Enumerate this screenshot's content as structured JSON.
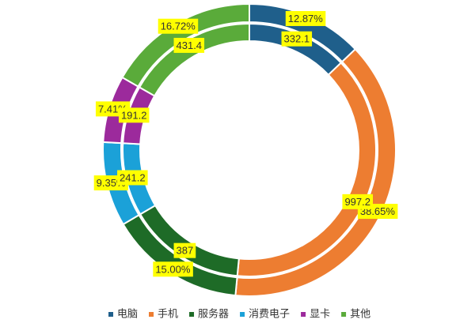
{
  "chart_data": {
    "type": "double-donut",
    "categories": [
      "电脑",
      "手机",
      "服务器",
      "消费电子",
      "显卡",
      "其他"
    ],
    "colors": [
      "#1f5f8b",
      "#ed7d31",
      "#1e6b27",
      "#1ba1d8",
      "#9c2a9c",
      "#5aab3a"
    ],
    "series": [
      {
        "values": [
          12.87,
          38.65,
          15,
          9.35,
          7.41,
          16.72
        ],
        "value_labels": [
          "12.87%",
          "38.65%",
          "15.00%",
          "9.35%",
          "7.41%",
          "16.72%"
        ]
      },
      {
        "values": [
          332.1,
          997.2,
          387,
          241.2,
          191.2,
          431.4
        ]
      }
    ]
  }
}
